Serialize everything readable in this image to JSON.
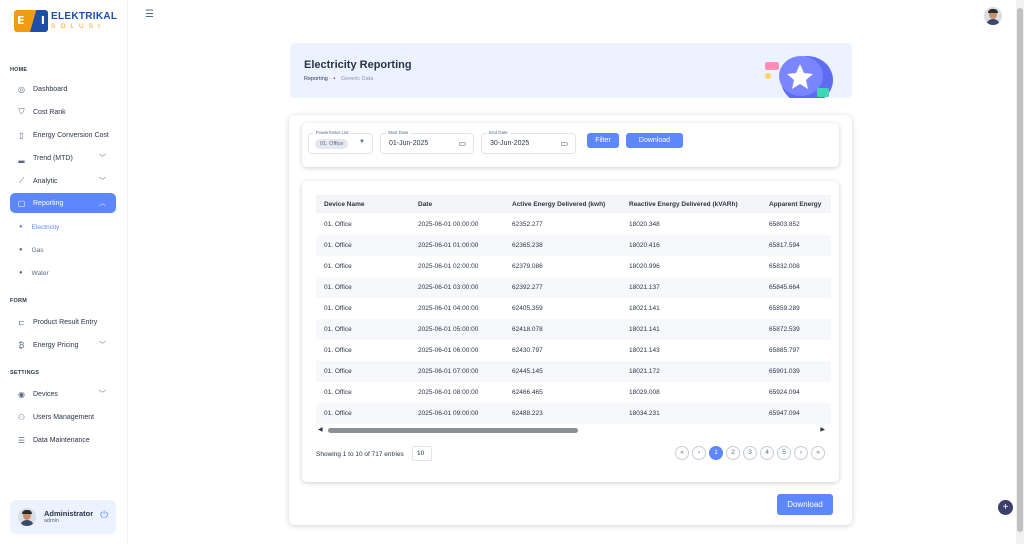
{
  "brand": {
    "name": "ELEKTRIKAL",
    "sub": "SOLUSI",
    "mark_left": "E",
    "mark_right": "I"
  },
  "sidebar": {
    "sections": {
      "home": "HOME",
      "form": "FORM",
      "settings": "SETTINGS"
    },
    "home_items": [
      {
        "label": "Dashboard",
        "icon": "dashboard-icon",
        "glyph": "◎"
      },
      {
        "label": "Cost Rank",
        "icon": "cost-rank-icon",
        "glyph": "⛉"
      },
      {
        "label": "Energy Conversion Cost",
        "icon": "conversion-icon",
        "glyph": "▯"
      },
      {
        "label": "Trend (MTD)",
        "icon": "chart-bar-icon",
        "glyph": "▂"
      },
      {
        "label": "Analytic",
        "icon": "analytic-icon",
        "glyph": "⟋"
      },
      {
        "label": "Reporting",
        "icon": "reporting-icon",
        "glyph": "▢"
      }
    ],
    "reporting_sub": [
      "Electricity",
      "Gas",
      "Water"
    ],
    "form_items": [
      {
        "label": "Product Result Entry",
        "icon": "cart-icon",
        "glyph": "⊏"
      },
      {
        "label": "Energy Pricing",
        "icon": "pricing-icon",
        "glyph": "₿"
      }
    ],
    "settings_items": [
      {
        "label": "Devices",
        "icon": "devices-icon",
        "glyph": "◉"
      },
      {
        "label": "Users Management",
        "icon": "users-icon",
        "glyph": "⚇"
      },
      {
        "label": "Data Maintenance",
        "icon": "database-icon",
        "glyph": "☰"
      }
    ],
    "profile": {
      "name": "Administrator",
      "role": "admin"
    }
  },
  "header": {
    "title": "Electricity Reporting",
    "crumb_root": "Reporting",
    "crumb_sep": "•",
    "crumb_current": "Generic Data"
  },
  "filters": {
    "powermeter_label": "Powermeter List",
    "powermeter_value": "01. Office",
    "start_label": "Start Date",
    "start_value": "01-Jun-2025",
    "end_label": "End Date",
    "end_value": "30-Jun-2025",
    "filter_button": "Filter",
    "download_button": "Download"
  },
  "table": {
    "columns": [
      "Device Name",
      "Date",
      "Active Energy Delivered (kwh)",
      "Reactive Energy Delivered (kVARh)",
      "Apparent Energy"
    ],
    "rows": [
      [
        "01. Office",
        "2025-06-01 00:00:00",
        "62352.277",
        "18020.348",
        "65803.852"
      ],
      [
        "01. Office",
        "2025-06-01 01:00:00",
        "62365.238",
        "18020.416",
        "65817.594"
      ],
      [
        "01. Office",
        "2025-06-01 02:00:00",
        "62379.086",
        "18020.996",
        "65832.008"
      ],
      [
        "01. Office",
        "2025-06-01 03:00:00",
        "62392.277",
        "18021.137",
        "65845.664"
      ],
      [
        "01. Office",
        "2025-06-01 04:00:00",
        "62405.359",
        "18021.141",
        "65859.289"
      ],
      [
        "01. Office",
        "2025-06-01 05:00:00",
        "62418.078",
        "18021.141",
        "65872.539"
      ],
      [
        "01. Office",
        "2025-06-01 06:00:00",
        "62430.797",
        "18021.143",
        "65885.797"
      ],
      [
        "01. Office",
        "2025-06-01 07:00:00",
        "62445.145",
        "18021.172",
        "65901.039"
      ],
      [
        "01. Office",
        "2025-06-01 08:00:00",
        "62466.465",
        "18029.008",
        "65924.094"
      ],
      [
        "01. Office",
        "2025-06-01 09:00:00",
        "62488.223",
        "18034.231",
        "65947.094"
      ]
    ],
    "showing": "Showing 1 to 10 of 717 entries",
    "per_page": "10",
    "pages": [
      "«",
      "‹",
      "1",
      "2",
      "3",
      "4",
      "5",
      "›",
      "»"
    ],
    "active_page": "1"
  },
  "bottom_download": "Download",
  "colors": {
    "primary": "#5d87ff",
    "accent": "#f39c12",
    "brand_blue": "#1d4fa8",
    "header_bg": "#ecf2ff"
  }
}
